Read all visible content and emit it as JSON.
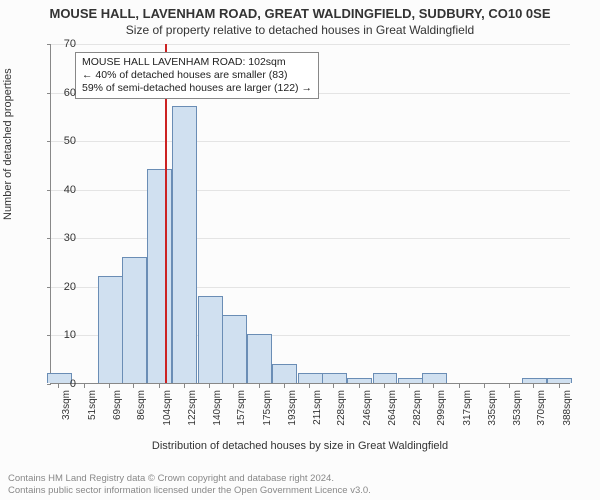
{
  "titles": {
    "line1": "MOUSE HALL, LAVENHAM ROAD, GREAT WALDINGFIELD, SUDBURY, CO10 0SE",
    "line2": "Size of property relative to detached houses in Great Waldingfield"
  },
  "histogram": {
    "type": "histogram",
    "bar_color": "#d0e0f0",
    "bar_border_color": "#6a8db5",
    "background_color": "#fcfcfc",
    "grid_color": "#e4e4e4",
    "axis_color": "#888888",
    "reference_line_color": "#cc2222",
    "reference_line_x": 108,
    "ylim": [
      0,
      70
    ],
    "ytick_step": 10,
    "xlim": [
      27,
      396
    ],
    "bar_width_units": 17.7,
    "categories_labels": [
      "33sqm",
      "51sqm",
      "69sqm",
      "86sqm",
      "104sqm",
      "122sqm",
      "140sqm",
      "157sqm",
      "175sqm",
      "193sqm",
      "211sqm",
      "228sqm",
      "246sqm",
      "264sqm",
      "282sqm",
      "299sqm",
      "317sqm",
      "335sqm",
      "353sqm",
      "370sqm",
      "388sqm"
    ],
    "categories_x": [
      33,
      51,
      69,
      86,
      104,
      122,
      140,
      157,
      175,
      193,
      211,
      228,
      246,
      264,
      282,
      299,
      317,
      335,
      353,
      370,
      388
    ],
    "values": [
      2,
      0,
      22,
      26,
      44,
      57,
      18,
      14,
      10,
      4,
      2,
      2,
      1,
      2,
      1,
      2,
      0,
      0,
      0,
      1,
      1
    ],
    "ylabel": "Number of detached properties",
    "xlabel": "Distribution of detached houses by size in Great Waldingfield",
    "label_fontsize": 11,
    "tick_fontsize": 10
  },
  "annotation": {
    "line1": "MOUSE HALL LAVENHAM ROAD: 102sqm",
    "line2": "← 40% of detached houses are smaller (83)",
    "line3": "59% of semi-detached houses are larger (122) →"
  },
  "copyright": {
    "line1": "Contains HM Land Registry data © Crown copyright and database right 2024.",
    "line2": "Contains public sector information licensed under the Open Government Licence v3.0."
  }
}
